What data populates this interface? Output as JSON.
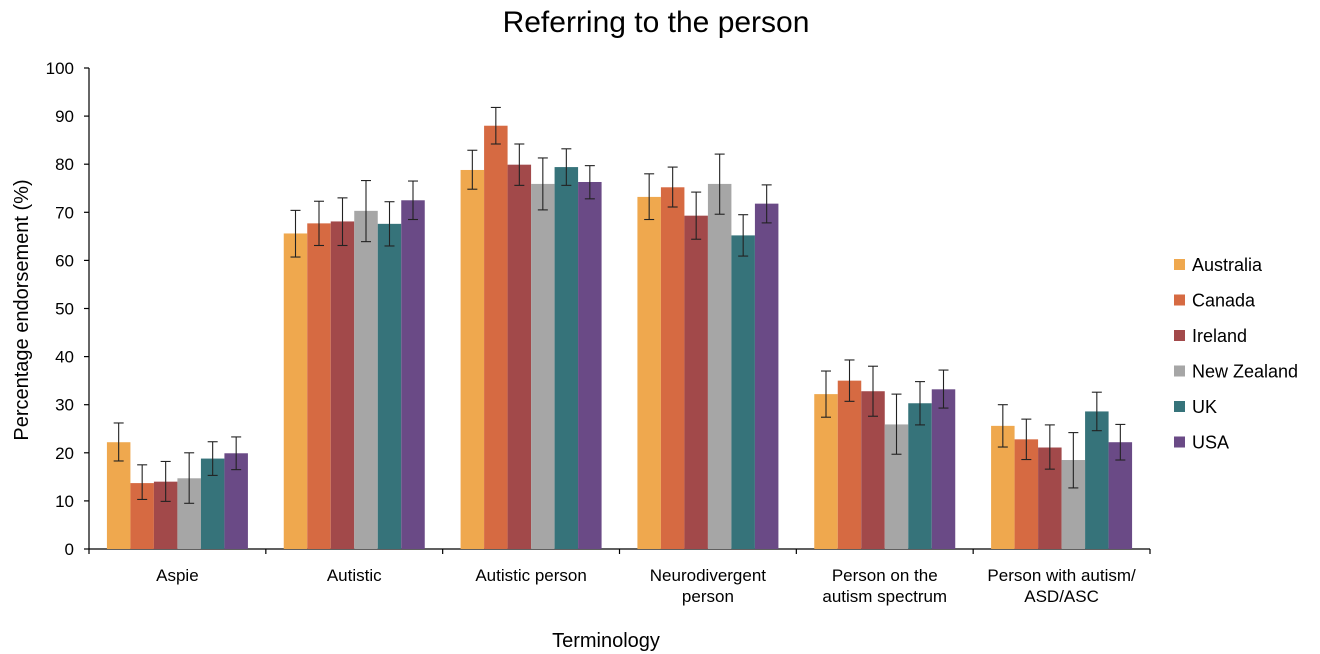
{
  "chart_data": {
    "type": "bar",
    "title": "Referring to the person",
    "xlabel": "Terminology",
    "ylabel": "Percentage endorsement (%)",
    "ylim": [
      0,
      100
    ],
    "yticks": [
      0,
      10,
      20,
      30,
      40,
      50,
      60,
      70,
      80,
      90,
      100
    ],
    "grid": false,
    "legend_position": "right",
    "categories": [
      [
        "Aspie"
      ],
      [
        "Autistic"
      ],
      [
        "Autistic person"
      ],
      [
        "Neurodivergent",
        "person"
      ],
      [
        "Person on the",
        "autism spectrum"
      ],
      [
        "Person with autism/",
        "ASD/ASC"
      ]
    ],
    "series": [
      {
        "name": "Australia",
        "color": "#EFA84E",
        "values": [
          22.2,
          65.6,
          78.8,
          73.2,
          32.2,
          25.6
        ],
        "err_low": [
          18.3,
          60.7,
          74.8,
          68.5,
          27.4,
          21.2
        ],
        "err_high": [
          26.2,
          70.4,
          82.9,
          78.0,
          37.0,
          30.0
        ]
      },
      {
        "name": "Canada",
        "color": "#D66A42",
        "values": [
          13.7,
          67.7,
          88.0,
          75.2,
          35.0,
          22.8
        ],
        "err_low": [
          10.3,
          63.1,
          84.2,
          71.1,
          30.7,
          18.6
        ],
        "err_high": [
          17.5,
          72.3,
          91.8,
          79.4,
          39.3,
          27.0
        ]
      },
      {
        "name": "Ireland",
        "color": "#A2494A",
        "values": [
          14.0,
          68.1,
          79.9,
          69.3,
          32.8,
          21.1
        ],
        "err_low": [
          9.9,
          63.1,
          75.6,
          64.4,
          27.6,
          16.6
        ],
        "err_high": [
          18.2,
          73.0,
          84.2,
          74.2,
          38.0,
          25.8
        ]
      },
      {
        "name": "New Zealand",
        "color": "#A6A6A6",
        "values": [
          14.7,
          70.3,
          75.9,
          75.9,
          25.9,
          18.5
        ],
        "err_low": [
          9.5,
          63.9,
          70.5,
          69.6,
          19.7,
          12.7
        ],
        "err_high": [
          20.0,
          76.6,
          81.3,
          82.1,
          32.2,
          24.2
        ]
      },
      {
        "name": "UK",
        "color": "#36737A",
        "values": [
          18.8,
          67.6,
          79.4,
          65.2,
          30.3,
          28.6
        ],
        "err_low": [
          15.3,
          63.0,
          75.6,
          60.9,
          25.8,
          24.6
        ],
        "err_high": [
          22.3,
          72.2,
          83.2,
          69.5,
          34.8,
          32.6
        ]
      },
      {
        "name": "USA",
        "color": "#6A4A86",
        "values": [
          19.9,
          72.5,
          76.3,
          71.8,
          33.2,
          22.2
        ],
        "err_low": [
          16.5,
          68.5,
          72.8,
          67.8,
          29.3,
          18.5
        ],
        "err_high": [
          23.3,
          76.5,
          79.7,
          75.7,
          37.2,
          25.9
        ]
      }
    ]
  }
}
